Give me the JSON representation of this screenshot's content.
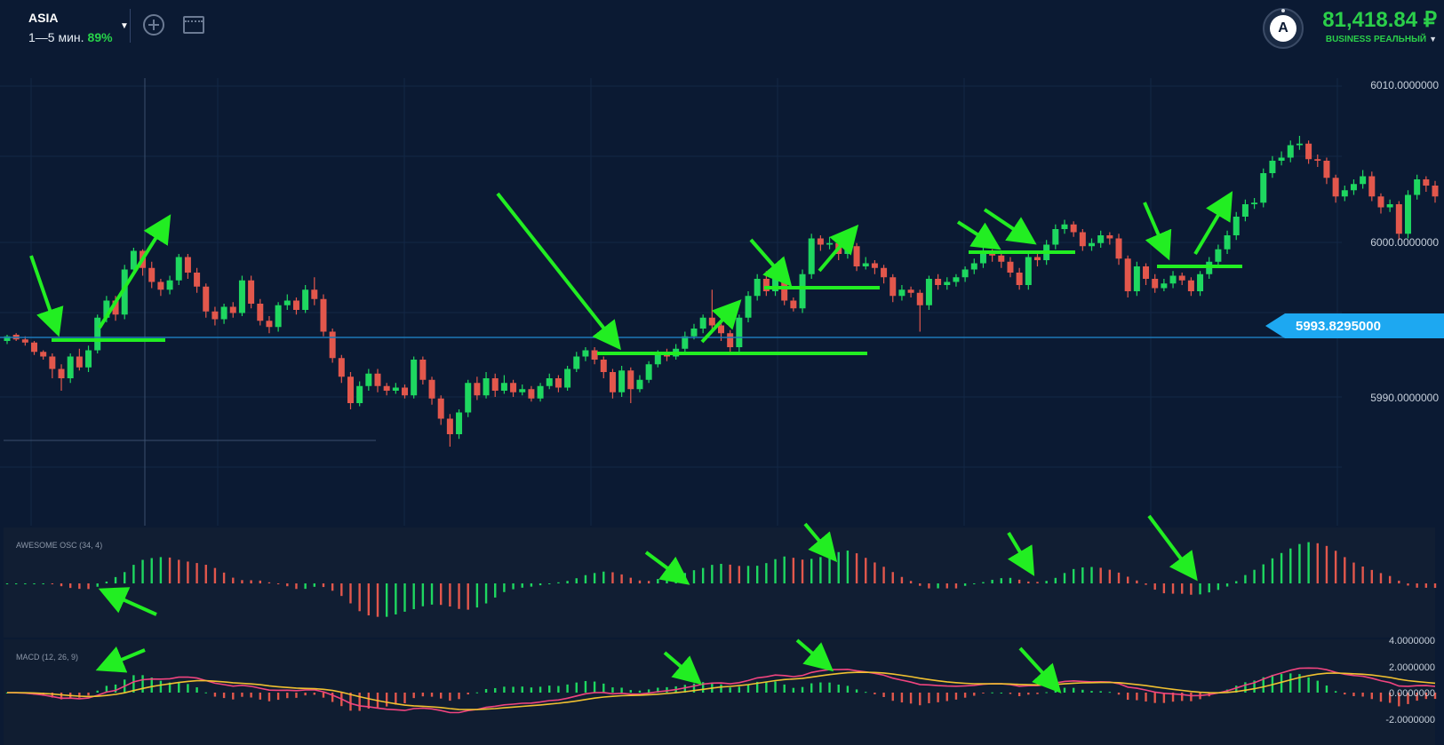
{
  "header": {
    "asset_name": "ASIA",
    "expiry": "1—5 мин.",
    "payout": "89%",
    "avatar_letter": "A",
    "balance": "81,418.84 ₽",
    "account_type": "BUSINESS",
    "account_mode": "РЕАЛЬНЫЙ"
  },
  "price_axis": {
    "labels": [
      "6010.0000000",
      "6000.0000000",
      "5990.0000000"
    ],
    "current_price": "5993.8295000"
  },
  "indicators": {
    "ao_title": "AWESOME OSC (34, 4)",
    "macd_title": "MACD (12, 26, 9)",
    "macd_labels": [
      "4.0000000",
      "2.0000000",
      "0.0000000",
      "-2.0000000"
    ]
  },
  "colors": {
    "background": "#0b1a33",
    "bullish": "#1ed760",
    "bearish": "#e2574c",
    "annotation": "#22ee22",
    "price_tag": "#1da8f1",
    "macd_line": "#f0447f",
    "signal_line": "#f0c030"
  },
  "chart_data": {
    "type": "candlestick",
    "ylim": [
      5985.5,
      6012
    ],
    "candles": [
      [
        5993.6,
        5993.9,
        5993.4,
        5994.0
      ],
      [
        5994.0,
        5993.7,
        5993.6,
        5994.1
      ],
      [
        5993.7,
        5993.5,
        5993.3,
        5993.9
      ],
      [
        5993.5,
        5992.9,
        5992.7,
        5993.6
      ],
      [
        5992.9,
        5992.6,
        5992.4,
        5993.0
      ],
      [
        5992.6,
        5991.8,
        5991.2,
        5992.8
      ],
      [
        5991.8,
        5991.2,
        5990.4,
        5992.1
      ],
      [
        5991.2,
        5992.6,
        5990.9,
        5992.8
      ],
      [
        5992.6,
        5991.9,
        5991.7,
        5993.1
      ],
      [
        5991.9,
        5993.0,
        5991.6,
        5993.3
      ],
      [
        5993.0,
        5995.1,
        5992.8,
        5995.3
      ],
      [
        5995.1,
        5996.2,
        5994.8,
        5996.5
      ],
      [
        5996.2,
        5995.3,
        5994.9,
        5996.5
      ],
      [
        5995.3,
        5998.2,
        5995.0,
        5998.5
      ],
      [
        5998.2,
        5999.4,
        5997.9,
        5999.6
      ],
      [
        5999.4,
        5998.3,
        5997.8,
        5999.5
      ],
      [
        5998.3,
        5997.4,
        5997.0,
        5998.7
      ],
      [
        5997.4,
        5996.9,
        5996.5,
        5997.6
      ],
      [
        5996.9,
        5997.5,
        5996.6,
        5997.8
      ],
      [
        5997.5,
        5999.0,
        5997.2,
        5999.2
      ],
      [
        5999.0,
        5998.0,
        5997.6,
        5999.2
      ],
      [
        5998.0,
        5997.1,
        5996.7,
        5998.3
      ],
      [
        5997.1,
        5995.5,
        5995.1,
        5997.3
      ],
      [
        5995.5,
        5995.0,
        5994.6,
        5995.8
      ],
      [
        5995.0,
        5995.8,
        5994.7,
        5996.0
      ],
      [
        5995.8,
        5995.4,
        5995.1,
        5996.1
      ],
      [
        5995.4,
        5997.5,
        5995.2,
        5997.8
      ],
      [
        5997.5,
        5996.0,
        5995.7,
        5997.8
      ],
      [
        5996.0,
        5994.9,
        5994.6,
        5996.3
      ],
      [
        5994.9,
        5994.5,
        5994.1,
        5995.2
      ],
      [
        5994.5,
        5995.9,
        5994.2,
        5996.1
      ],
      [
        5995.9,
        5996.2,
        5995.6,
        5996.6
      ],
      [
        5996.2,
        5995.6,
        5995.3,
        5996.4
      ],
      [
        5995.6,
        5996.9,
        5995.4,
        5997.2
      ],
      [
        5996.9,
        5996.3,
        5995.9,
        5997.7
      ],
      [
        5996.3,
        5994.2,
        5993.9,
        5996.6
      ],
      [
        5994.2,
        5992.5,
        5992.2,
        5994.4
      ],
      [
        5992.5,
        5991.3,
        5990.9,
        5992.7
      ],
      [
        5991.3,
        5989.6,
        5989.2,
        5991.6
      ],
      [
        5989.6,
        5990.7,
        5989.4,
        5991.0
      ],
      [
        5990.7,
        5991.5,
        5990.4,
        5991.8
      ],
      [
        5991.5,
        5990.7,
        5990.3,
        5991.8
      ],
      [
        5990.7,
        5990.4,
        5990.1,
        5990.9
      ],
      [
        5990.4,
        5990.6,
        5990.2,
        5990.9
      ],
      [
        5990.6,
        5990.1,
        5989.9,
        5990.8
      ],
      [
        5990.1,
        5992.4,
        5989.9,
        5992.6
      ],
      [
        5992.4,
        5991.1,
        5990.8,
        5992.6
      ],
      [
        5991.1,
        5989.9,
        5989.5,
        5991.3
      ],
      [
        5989.9,
        5988.6,
        5988.2,
        5990.1
      ],
      [
        5988.6,
        5987.6,
        5986.8,
        5988.9
      ],
      [
        5987.6,
        5989.0,
        5987.3,
        5989.2
      ],
      [
        5989.0,
        5990.9,
        5988.7,
        5991.1
      ],
      [
        5990.9,
        5990.1,
        5989.8,
        5991.3
      ],
      [
        5990.1,
        5991.2,
        5989.9,
        5991.6
      ],
      [
        5991.2,
        5990.4,
        5990.0,
        5991.5
      ],
      [
        5990.4,
        5990.9,
        5990.2,
        5991.4
      ],
      [
        5990.9,
        5990.3,
        5990.0,
        5991.1
      ],
      [
        5990.3,
        5990.5,
        5990.1,
        5990.8
      ],
      [
        5990.5,
        5989.9,
        5989.7,
        5990.7
      ],
      [
        5989.9,
        5990.7,
        5989.7,
        5990.9
      ],
      [
        5990.7,
        5991.2,
        5990.5,
        5991.5
      ],
      [
        5991.2,
        5990.6,
        5990.3,
        5991.4
      ],
      [
        5990.6,
        5991.8,
        5990.4,
        5992.0
      ],
      [
        5991.8,
        5992.6,
        5991.6,
        5992.9
      ],
      [
        5992.6,
        5993.0,
        5992.3,
        5993.2
      ],
      [
        5993.0,
        5992.4,
        5992.1,
        5993.2
      ],
      [
        5992.4,
        5991.6,
        5991.2,
        5992.6
      ],
      [
        5991.6,
        5990.3,
        5989.9,
        5991.8
      ],
      [
        5990.3,
        5991.7,
        5990.0,
        5992.0
      ],
      [
        5991.7,
        5990.5,
        5989.6,
        5991.9
      ],
      [
        5990.5,
        5991.1,
        5990.3,
        5991.4
      ],
      [
        5991.1,
        5992.1,
        5990.9,
        5992.3
      ],
      [
        5992.1,
        5992.8,
        5991.9,
        5993.0
      ],
      [
        5992.8,
        5992.6,
        5992.3,
        5993.1
      ],
      [
        5992.6,
        5993.1,
        5992.4,
        5993.4
      ],
      [
        5993.1,
        5993.9,
        5992.9,
        5994.2
      ],
      [
        5993.9,
        5994.4,
        5993.7,
        5994.7
      ],
      [
        5994.4,
        5995.1,
        5994.1,
        5995.3
      ],
      [
        5995.1,
        5994.6,
        5994.3,
        5996.9
      ],
      [
        5994.6,
        5994.1,
        5993.6,
        5994.9
      ],
      [
        5994.1,
        5993.2,
        5992.9,
        5994.3
      ],
      [
        5993.2,
        5995.1,
        5992.9,
        5995.3
      ],
      [
        5995.1,
        5996.5,
        5994.8,
        5996.8
      ],
      [
        5996.5,
        5997.6,
        5996.2,
        5997.9
      ],
      [
        5997.6,
        5996.8,
        5996.5,
        5998.1
      ],
      [
        5996.8,
        5997.9,
        5996.5,
        5998.2
      ],
      [
        5997.9,
        5996.2,
        5995.9,
        5998.1
      ],
      [
        5996.2,
        5995.7,
        5995.5,
        5996.4
      ],
      [
        5995.7,
        5997.9,
        5995.4,
        5998.2
      ],
      [
        5997.9,
        6000.2,
        5997.6,
        6000.5
      ],
      [
        6000.2,
        5999.8,
        5999.4,
        6000.4
      ],
      [
        5999.8,
        5999.9,
        5999.5,
        6000.3
      ],
      [
        5999.9,
        5999.2,
        5998.8,
        6000.2
      ],
      [
        5999.2,
        5999.7,
        5998.9,
        6000.0
      ],
      [
        5999.7,
        5998.4,
        5998.1,
        5999.9
      ],
      [
        5998.4,
        5998.6,
        5998.2,
        5999.0
      ],
      [
        5998.6,
        5998.3,
        5997.9,
        5998.8
      ],
      [
        5998.3,
        5997.7,
        5997.3,
        5998.5
      ],
      [
        5997.7,
        5996.5,
        5996.1,
        5997.9
      ],
      [
        5996.5,
        5996.9,
        5996.2,
        5997.2
      ],
      [
        5996.9,
        5996.7,
        5996.4,
        5997.1
      ],
      [
        5996.7,
        5995.9,
        5994.2,
        5996.9
      ],
      [
        5995.9,
        5997.6,
        5995.6,
        5997.8
      ],
      [
        5997.6,
        5997.2,
        5996.9,
        5997.9
      ],
      [
        5997.2,
        5997.4,
        5996.9,
        5997.7
      ],
      [
        5997.4,
        5997.7,
        5997.1,
        5997.9
      ],
      [
        5997.7,
        5998.2,
        5997.4,
        5998.4
      ],
      [
        5998.2,
        5998.6,
        5997.9,
        5998.9
      ],
      [
        5998.6,
        5999.3,
        5998.3,
        5999.6
      ],
      [
        5999.3,
        5999.1,
        5998.7,
        5999.5
      ],
      [
        5999.1,
        5998.7,
        5998.3,
        5999.3
      ],
      [
        5998.7,
        5998.0,
        5997.7,
        5999.0
      ],
      [
        5998.0,
        5997.2,
        5996.9,
        5998.3
      ],
      [
        5997.2,
        5999.0,
        5996.9,
        5999.2
      ],
      [
        5999.0,
        5998.8,
        5998.4,
        5999.3
      ],
      [
        5998.8,
        5999.8,
        5998.5,
        6000.1
      ],
      [
        5999.8,
        6000.8,
        5999.5,
        6001.1
      ],
      [
        6000.8,
        6001.1,
        6000.5,
        6001.4
      ],
      [
        6001.1,
        6000.6,
        6000.3,
        6001.3
      ],
      [
        6000.6,
        5999.7,
        5999.4,
        6000.8
      ],
      [
        5999.7,
        5999.9,
        5999.4,
        6000.2
      ],
      [
        5999.9,
        6000.4,
        5999.6,
        6000.7
      ],
      [
        6000.4,
        6000.2,
        5999.8,
        6000.6
      ],
      [
        6000.2,
        5998.9,
        5998.5,
        6000.5
      ],
      [
        5998.9,
        5996.8,
        5996.4,
        5999.1
      ],
      [
        5996.8,
        5998.4,
        5996.5,
        5998.7
      ],
      [
        5998.4,
        5997.6,
        5997.2,
        5998.6
      ],
      [
        5997.6,
        5997.0,
        5996.7,
        5997.9
      ],
      [
        5997.0,
        5997.3,
        5996.8,
        5997.6
      ],
      [
        5997.3,
        5997.8,
        5997.0,
        5998.1
      ],
      [
        5997.8,
        5997.5,
        5997.2,
        5998.0
      ],
      [
        5997.5,
        5996.8,
        5996.5,
        5997.7
      ],
      [
        5996.8,
        5997.9,
        5996.5,
        5998.1
      ],
      [
        5997.9,
        5998.7,
        5997.6,
        5999.0
      ],
      [
        5998.7,
        5999.5,
        5998.4,
        5999.8
      ],
      [
        5999.5,
        6000.4,
        5999.2,
        6000.7
      ],
      [
        6000.4,
        6001.6,
        6000.1,
        6001.9
      ],
      [
        6001.6,
        6002.4,
        6001.3,
        6002.7
      ],
      [
        6002.4,
        6002.5,
        6002.1,
        6002.8
      ],
      [
        6002.5,
        6004.4,
        6002.2,
        6004.7
      ],
      [
        6004.4,
        6005.2,
        6004.1,
        6005.5
      ],
      [
        6005.2,
        6005.4,
        6004.9,
        6005.8
      ],
      [
        6005.4,
        6006.2,
        6005.1,
        6006.5
      ],
      [
        6006.2,
        6006.3,
        6005.9,
        6006.8
      ],
      [
        6006.3,
        6005.3,
        6005.0,
        6006.5
      ],
      [
        6005.3,
        6005.2,
        6004.8,
        6005.6
      ],
      [
        6005.2,
        6004.1,
        6003.7,
        6005.4
      ],
      [
        6004.1,
        6002.9,
        6002.5,
        6004.3
      ],
      [
        6002.9,
        6003.3,
        6002.6,
        6003.6
      ],
      [
        6003.3,
        6003.7,
        6003.0,
        6004.0
      ],
      [
        6003.7,
        6004.2,
        6003.4,
        6004.6
      ],
      [
        6004.2,
        6002.9,
        6002.6,
        6004.5
      ],
      [
        6002.9,
        6002.2,
        6001.8,
        6003.1
      ],
      [
        6002.2,
        6002.4,
        6001.9,
        6002.7
      ],
      [
        6002.4,
        6000.5,
        6000.1,
        6002.6
      ],
      [
        6000.5,
        6003.0,
        6000.2,
        6003.3
      ],
      [
        6003.0,
        6004.0,
        6002.7,
        6004.3
      ],
      [
        6004.0,
        6003.6,
        6003.2,
        6004.2
      ],
      [
        6003.6,
        6002.9,
        6002.5,
        6003.9
      ]
    ]
  }
}
